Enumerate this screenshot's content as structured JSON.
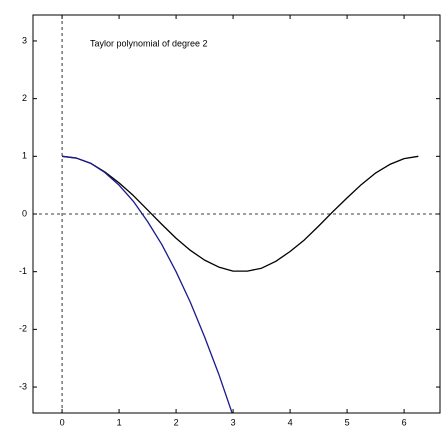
{
  "chart_data": {
    "type": "line",
    "annotation": "Taylor polynomial of degree 2",
    "x": [
      0,
      0.25,
      0.5,
      0.75,
      1,
      1.25,
      1.5,
      1.75,
      2,
      2.25,
      2.5,
      2.75,
      3,
      3.25,
      3.5,
      3.75,
      4,
      4.25,
      4.5,
      4.75,
      5,
      5.25,
      5.5,
      5.75,
      6,
      6.25
    ],
    "series": [
      {
        "color": "#000000",
        "values": [
          1,
          0.97,
          0.88,
          0.73,
          0.54,
          0.32,
          0.07,
          -0.18,
          -0.42,
          -0.63,
          -0.8,
          -0.92,
          -0.99,
          -0.99,
          -0.94,
          -0.82,
          -0.65,
          -0.45,
          -0.21,
          0.04,
          0.28,
          0.51,
          0.71,
          0.86,
          0.96,
          1
        ]
      },
      {
        "color": "#1a1a8c",
        "values": [
          1,
          0.97,
          0.88,
          0.72,
          0.5,
          0.22,
          -0.13,
          -0.53,
          -1,
          -1.53,
          -2.13,
          -2.78,
          -3.5,
          null,
          null,
          null,
          null,
          null,
          null,
          null,
          null,
          null,
          null,
          null,
          null,
          null
        ]
      }
    ],
    "xlim": [
      -0.51,
      6.63
    ],
    "ylim": [
      -3.45,
      3.45
    ],
    "xticks": [
      0,
      1,
      2,
      3,
      4,
      5,
      6
    ],
    "yticks": [
      -3,
      -2,
      -1,
      0,
      1,
      2,
      3
    ],
    "zero_lines": true
  }
}
